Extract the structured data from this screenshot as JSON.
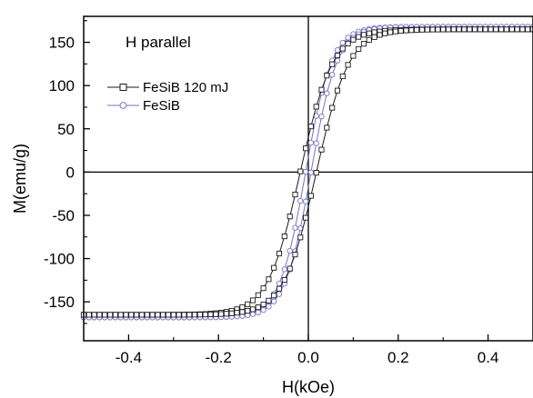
{
  "chart_data": {
    "type": "scatter",
    "title": "",
    "annotation": "H parallel",
    "xlabel": "H(kOe)",
    "ylabel": "M(emu/g)",
    "xlim": [
      -0.5,
      0.5
    ],
    "ylim": [
      -195,
      180
    ],
    "xticks": [
      -0.4,
      -0.2,
      0.0,
      0.2,
      0.4
    ],
    "xtick_labels": [
      "-0.4",
      "-0.2",
      "0.0",
      "0.2",
      "0.4"
    ],
    "yticks": [
      -150,
      -100,
      -50,
      0,
      50,
      100,
      150
    ],
    "ytick_labels": [
      "-150",
      "-100",
      "-50",
      "0",
      "50",
      "100",
      "150"
    ],
    "grid": false,
    "zero_lines": true,
    "legend_position": "upper-left",
    "series": [
      {
        "name": "FeSiB 120 mJ",
        "color": "#1a1a1a",
        "marker": "square",
        "params": {
          "ms": 165,
          "hc": 0.018,
          "w": 0.072,
          "shape": "loop"
        },
        "branches": [
          {
            "branch": "descending",
            "x": [
              0.5,
              0.45,
              0.4,
              0.35,
              0.3,
              0.25,
              0.2,
              0.15,
              0.1,
              0.05,
              0.0,
              -0.05,
              -0.1,
              -0.15,
              -0.2,
              -0.25,
              -0.3,
              -0.35,
              -0.4,
              -0.45,
              -0.5
            ],
            "y": [
              165,
              164.3,
              163.5,
              162.1,
              160,
              156.2,
              147.5,
              125.9,
              88.1,
              36.1,
              -23.2,
              -78.8,
              -120.2,
              -143.1,
              -154.6,
              -159.5,
              -162.1,
              -163.3,
              -164.1,
              -164.5,
              -164.8
            ]
          },
          {
            "branch": "ascending",
            "x": [
              -0.5,
              -0.45,
              -0.4,
              -0.35,
              -0.3,
              -0.25,
              -0.2,
              -0.15,
              -0.1,
              -0.05,
              0.0,
              0.05,
              0.1,
              0.15,
              0.2,
              0.25,
              0.3,
              0.35,
              0.4,
              0.45,
              0.5
            ],
            "y": [
              -165,
              -164.3,
              -163.5,
              -162.1,
              -160,
              -156.2,
              -147.5,
              -125.9,
              -88.1,
              -36.1,
              23.2,
              78.8,
              120.2,
              143.1,
              154.6,
              159.5,
              162.1,
              163.3,
              164.1,
              164.5,
              164.8
            ]
          }
        ]
      },
      {
        "name": "FeSiB",
        "color": "#7272dc",
        "marker": "circle",
        "params": {
          "ms": 168,
          "hc": 0.006,
          "w": 0.058,
          "shape": "loop"
        },
        "branches": [
          {
            "branch": "descending",
            "x": [
              0.5,
              0.45,
              0.4,
              0.35,
              0.3,
              0.25,
              0.2,
              0.15,
              0.1,
              0.05,
              0.0,
              -0.05,
              -0.1,
              -0.15,
              -0.2,
              -0.25,
              -0.3,
              -0.35,
              -0.4,
              -0.45,
              -0.5
            ],
            "y": [
              168,
              167.7,
              167.2,
              166.5,
              165.1,
              162.6,
              155.6,
              136.4,
              96.3,
              33.9,
              -37.7,
              -98.7,
              -138.1,
              -157.4,
              -164.3,
              -166.3,
              -167.2,
              -167.6,
              -167.8,
              -167.9,
              -168
            ]
          },
          {
            "branch": "ascending",
            "x": [
              -0.5,
              -0.45,
              -0.4,
              -0.35,
              -0.3,
              -0.25,
              -0.2,
              -0.15,
              -0.1,
              -0.05,
              0.0,
              0.05,
              0.1,
              0.15,
              0.2,
              0.25,
              0.3,
              0.35,
              0.4,
              0.45,
              0.5
            ],
            "y": [
              -168,
              -167.7,
              -167.2,
              -166.5,
              -165.1,
              -162.6,
              -155.6,
              -136.4,
              -96.3,
              -33.9,
              37.7,
              98.7,
              138.1,
              157.4,
              164.3,
              166.3,
              167.2,
              167.6,
              167.8,
              167.9,
              168
            ]
          }
        ]
      }
    ]
  }
}
